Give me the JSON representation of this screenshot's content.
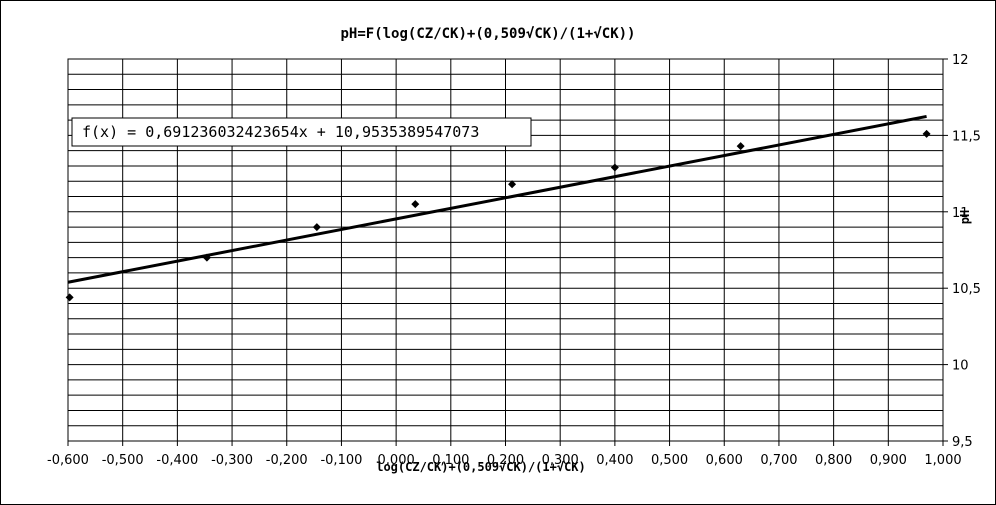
{
  "chart_data": {
    "type": "scatter",
    "title": "pH=F(log(CZ/CK)+(0,509√CK)/(1+√CK))",
    "xlabel": "log(CZ/CK)+(0,509√CK)/(1+√CK)",
    "ylabel": "pH",
    "xlim": [
      -0.6,
      1.0
    ],
    "ylim": [
      9.5,
      12
    ],
    "x_ticks": [
      "-0,600",
      "-0,500",
      "-0,400",
      "-0,300",
      "-0,200",
      "-0,100",
      "0,000",
      "0,100",
      "0,200",
      "0,300",
      "0,400",
      "0,500",
      "0,600",
      "0,700",
      "0,800",
      "0,900",
      "1,000"
    ],
    "y_ticks": [
      "9,5",
      "10",
      "10,5",
      "11",
      "11,5",
      "12"
    ],
    "grid": true,
    "series": [
      {
        "points": [
          {
            "x": -0.597,
            "y": 10.44
          },
          {
            "x": -0.346,
            "y": 10.7
          },
          {
            "x": -0.145,
            "y": 10.9
          },
          {
            "x": 0.035,
            "y": 11.05
          },
          {
            "x": 0.212,
            "y": 11.18
          },
          {
            "x": 0.4,
            "y": 11.29
          },
          {
            "x": 0.63,
            "y": 11.43
          },
          {
            "x": 0.97,
            "y": 11.51
          }
        ]
      }
    ],
    "trendline": {
      "slope": 0.691236032423654,
      "intercept": 10.9535389547073,
      "x_range": [
        -0.6,
        0.97
      ],
      "equation": "f(x) = 0,691236032423654x + 10,9535389547073"
    }
  }
}
